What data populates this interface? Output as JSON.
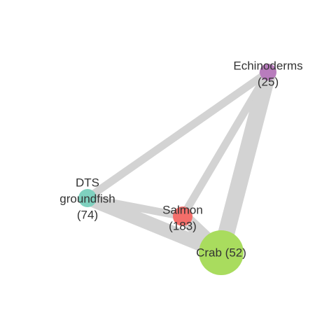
{
  "colors": {
    "edge": "#d3d3d3",
    "label": "#333333"
  },
  "network": {
    "nodes": [
      {
        "id": "echinoderms",
        "label_lines": [
          "Echinoderms",
          "(25)"
        ],
        "color": "#b87cbd"
      },
      {
        "id": "dts",
        "label_lines": [
          "DTS",
          "groundfish",
          "(74)"
        ],
        "color": "#7fd1bf"
      },
      {
        "id": "salmon",
        "label_lines": [
          "Salmon",
          "(183)"
        ],
        "color": "#f46e6a"
      },
      {
        "id": "crab",
        "label_lines": [
          "Crab (52)"
        ],
        "color": "#a9dc5e"
      }
    ],
    "edges": [
      {
        "source": "dts",
        "target": "echinoderms"
      },
      {
        "source": "salmon",
        "target": "echinoderms"
      },
      {
        "source": "crab",
        "target": "echinoderms"
      },
      {
        "source": "dts",
        "target": "salmon"
      },
      {
        "source": "dts",
        "target": "crab"
      },
      {
        "source": "salmon",
        "target": "crab"
      }
    ]
  }
}
